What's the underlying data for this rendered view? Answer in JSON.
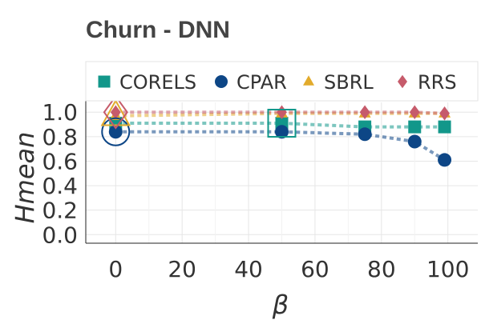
{
  "chart_data": {
    "type": "line",
    "title": "Churn - DNN",
    "xlabel": "β",
    "ylabel": "Hmean",
    "xlim": [
      -9,
      109
    ],
    "ylim": [
      -0.07,
      1.08
    ],
    "xticks": [
      "0",
      "20",
      "40",
      "60",
      "80",
      "100"
    ],
    "xtick_values": [
      0,
      20,
      40,
      60,
      80,
      100
    ],
    "yticks": [
      "0.0",
      "0.2",
      "0.4",
      "0.6",
      "0.8",
      "1.0"
    ],
    "ytick_values": [
      0.0,
      0.2,
      0.4,
      0.6,
      0.8,
      1.0
    ],
    "grid": true,
    "legend_position": "top",
    "x": [
      0,
      50,
      75,
      90,
      99
    ],
    "series": [
      {
        "name": "CORELS",
        "color": "#12978a",
        "marker": "square",
        "values": [
          0.91,
          0.91,
          0.88,
          0.88,
          0.88
        ],
        "highlight_index": 1
      },
      {
        "name": "CPAR",
        "color": "#0d4686",
        "marker": "circle",
        "values": [
          0.84,
          0.84,
          0.82,
          0.76,
          0.61
        ],
        "highlight_index": 0
      },
      {
        "name": "SBRL",
        "color": "#e2ab2c",
        "marker": "triangle",
        "values": [
          0.97,
          0.99,
          0.99,
          0.99,
          0.99
        ],
        "highlight_index": 0
      },
      {
        "name": "RRS",
        "color": "#c65b6b",
        "marker": "diamond",
        "values": [
          1.0,
          1.0,
          1.0,
          1.0,
          0.99
        ],
        "highlight_index": 0
      }
    ]
  }
}
